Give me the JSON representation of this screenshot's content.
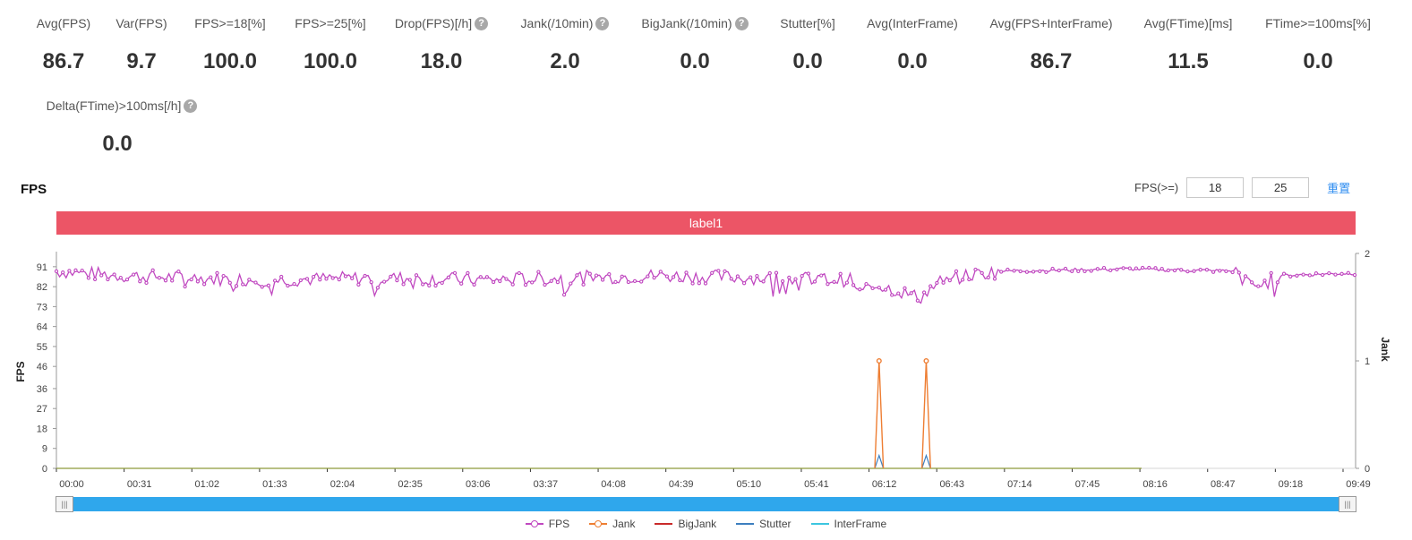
{
  "metrics": [
    {
      "label": "Avg(FPS)",
      "value": "86.7",
      "help": false
    },
    {
      "label": "Var(FPS)",
      "value": "9.7",
      "help": false
    },
    {
      "label": "FPS>=18[%]",
      "value": "100.0",
      "help": false
    },
    {
      "label": "FPS>=25[%]",
      "value": "100.0",
      "help": false
    },
    {
      "label": "Drop(FPS)[/h]",
      "value": "18.0",
      "help": true
    },
    {
      "label": "Jank(/10min)",
      "value": "2.0",
      "help": true
    },
    {
      "label": "BigJank(/10min)",
      "value": "0.0",
      "help": true
    },
    {
      "label": "Stutter[%]",
      "value": "0.0",
      "help": false
    },
    {
      "label": "Avg(InterFrame)",
      "value": "0.0",
      "help": false
    },
    {
      "label": "Avg(FPS+InterFrame)",
      "value": "86.7",
      "help": false
    },
    {
      "label": "Avg(FTime)[ms]",
      "value": "11.5",
      "help": false
    },
    {
      "label": "FTime>=100ms[%]",
      "value": "0.0",
      "help": false
    },
    {
      "label": "Delta(FTime)>100ms[/h]",
      "value": "0.0",
      "help": true
    }
  ],
  "help_glyph": "?",
  "chart_title": "FPS",
  "fps_threshold": {
    "label": "FPS(>=)",
    "value1": "18",
    "value2": "25"
  },
  "reset_label": "重置",
  "label_bar": "label1",
  "slider_handle_glyph": "|||",
  "legend": [
    {
      "name": "FPS",
      "color": "#c048c0",
      "marker": "dot"
    },
    {
      "name": "Jank",
      "color": "#ee7e33",
      "marker": "dot"
    },
    {
      "name": "BigJank",
      "color": "#c92a2a",
      "marker": "line"
    },
    {
      "name": "Stutter",
      "color": "#3d7fbf",
      "marker": "line"
    },
    {
      "name": "InterFrame",
      "color": "#3cc6e0",
      "marker": "line"
    }
  ],
  "chart_data": {
    "type": "line",
    "x_ticks": [
      "00:00",
      "00:31",
      "01:02",
      "01:33",
      "02:04",
      "02:35",
      "03:06",
      "03:37",
      "04:08",
      "04:39",
      "05:10",
      "05:41",
      "06:12",
      "06:43",
      "07:14",
      "07:45",
      "08:16",
      "08:47",
      "09:18",
      "09:49"
    ],
    "y_left_label": "FPS",
    "y_left_ticks": [
      0,
      9,
      18,
      27,
      36,
      46,
      55,
      64,
      73,
      82,
      91
    ],
    "y_left_range": [
      0,
      97
    ],
    "y_right_label": "Jank",
    "y_right_ticks": [
      0,
      1,
      2
    ],
    "y_right_range": [
      0,
      2
    ],
    "x_range_seconds": [
      0,
      606
    ],
    "fps_profile": [
      [
        0,
        89
      ],
      [
        30,
        87
      ],
      [
        60,
        86
      ],
      [
        100,
        85
      ],
      [
        150,
        86
      ],
      [
        200,
        85
      ],
      [
        240,
        86
      ],
      [
        280,
        87
      ],
      [
        330,
        86
      ],
      [
        370,
        85
      ],
      [
        390,
        81
      ],
      [
        403,
        77
      ],
      [
        412,
        84
      ],
      [
        425,
        87
      ],
      [
        440,
        89
      ],
      [
        500,
        90
      ],
      [
        550,
        89
      ],
      [
        555,
        84
      ],
      [
        562,
        82
      ],
      [
        570,
        87
      ],
      [
        600,
        88
      ],
      [
        606,
        88
      ]
    ],
    "jank_points": [
      [
        384,
        1
      ],
      [
        406,
        1
      ]
    ],
    "stutter_points": [
      [
        384,
        0.12
      ],
      [
        406,
        0.12
      ]
    ],
    "bigjank_value": 0,
    "interframe_value": 0
  }
}
